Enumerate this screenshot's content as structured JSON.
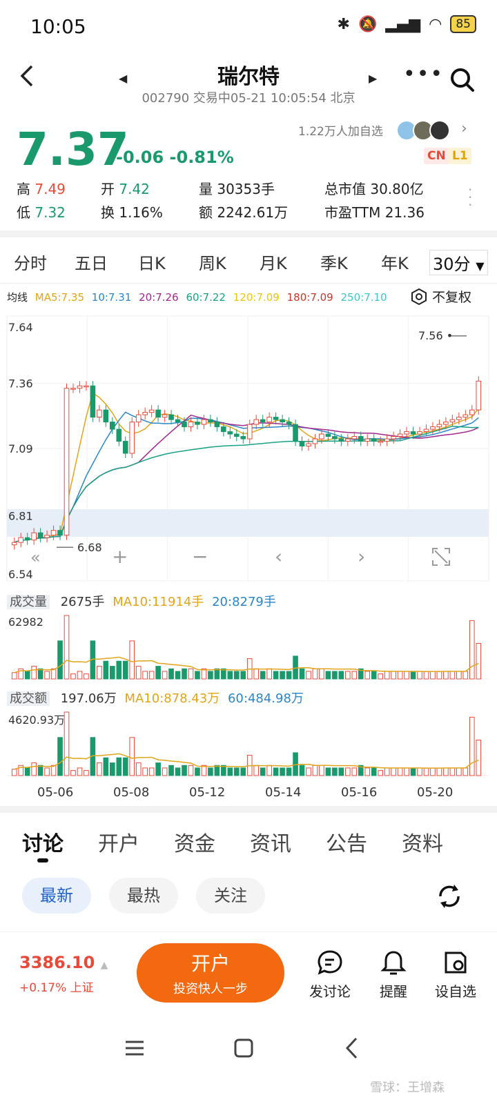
{
  "status_bar": {
    "time": "10:05",
    "battery": "85"
  },
  "header": {
    "title": "瑞尔特",
    "subtitle": "002790 交易中05-21 10:05:54 北京"
  },
  "quote": {
    "price": "7.37",
    "change": "-0.06 -0.81%",
    "watchers": "1.22万人加自选",
    "tag_cn": "CN",
    "tag_l1": "L1",
    "high_label": "高",
    "high": "7.49",
    "open_label": "开",
    "open": "7.42",
    "volume_label": "量",
    "volume": "30353手",
    "mktcap_label": "总市值",
    "mktcap": "30.80亿",
    "low_label": "低",
    "low": "7.32",
    "turnover_label": "换",
    "turnover": "1.16%",
    "amount_label": "额",
    "amount": "2242.61万",
    "pe_label": "市盈TTM",
    "pe": "21.36"
  },
  "period_tabs": [
    "分时",
    "五日",
    "日K",
    "周K",
    "月K",
    "季K",
    "年K",
    "30分"
  ],
  "ma_legend": {
    "label": "均线",
    "items": [
      {
        "text": "MA5:7.35",
        "color": "#e2a418"
      },
      {
        "text": "10:7.31",
        "color": "#2a86c8"
      },
      {
        "text": "20:7.26",
        "color": "#a0288f"
      },
      {
        "text": "60:7.22",
        "color": "#16a085"
      },
      {
        "text": "120:7.09",
        "color": "#e8c510"
      },
      {
        "text": "180:7.09",
        "color": "#c0392b"
      },
      {
        "text": "250:7.10",
        "color": "#3cc6c6"
      }
    ],
    "adjust": "不复权"
  },
  "chart_data": {
    "type": "candlestick",
    "y_ticks": [
      "7.64",
      "7.36",
      "7.09",
      "6.81",
      "6.54"
    ],
    "ylim": [
      6.54,
      7.64
    ],
    "x_ticks": [
      "05-06",
      "05-08",
      "05-12",
      "05-14",
      "05-16",
      "05-20"
    ],
    "high_marker": "7.56",
    "low_marker": "6.68",
    "close": [
      6.7,
      6.72,
      6.71,
      6.74,
      6.72,
      6.73,
      6.75,
      6.73,
      7.34,
      7.34,
      7.35,
      7.35,
      7.22,
      7.25,
      7.2,
      7.17,
      7.12,
      7.07,
      7.2,
      7.23,
      7.24,
      7.25,
      7.22,
      7.23,
      7.21,
      7.2,
      7.18,
      7.2,
      7.19,
      7.21,
      7.2,
      7.18,
      7.16,
      7.15,
      7.14,
      7.13,
      7.19,
      7.21,
      7.2,
      7.22,
      7.21,
      7.2,
      7.19,
      7.12,
      7.1,
      7.11,
      7.13,
      7.15,
      7.14,
      7.13,
      7.12,
      7.13,
      7.14,
      7.12,
      7.13,
      7.12,
      7.12,
      7.13,
      7.14,
      7.15,
      7.16,
      7.15,
      7.16,
      7.17,
      7.18,
      7.19,
      7.2,
      7.21,
      7.22,
      7.23,
      7.25,
      7.37
    ],
    "volume": {
      "label": "成交量",
      "current": "2675手",
      "ma10": "MA10:11914手",
      "ma20": "20:8279手",
      "max": "62982"
    },
    "amount": {
      "label": "成交额",
      "current": "197.06万",
      "ma10": "MA10:878.43万",
      "ma60": "60:484.98万",
      "max": "4620.93万"
    }
  },
  "discussion_tabs": [
    "讨论",
    "开户",
    "资金",
    "资讯",
    "公告",
    "资料"
  ],
  "filters": [
    "最新",
    "最热",
    "关注"
  ],
  "bottom": {
    "index_value": "3386.10",
    "index_change": "+0.17% 上证",
    "open_title": "开户",
    "open_sub": "投资快人一步",
    "discuss": "发讨论",
    "remind": "提醒",
    "watch": "设自选"
  },
  "watermark": "雪球：王增森",
  "colors": {
    "up": "#e84a3a",
    "down": "#1a9a6c",
    "accent": "#f2690f"
  }
}
